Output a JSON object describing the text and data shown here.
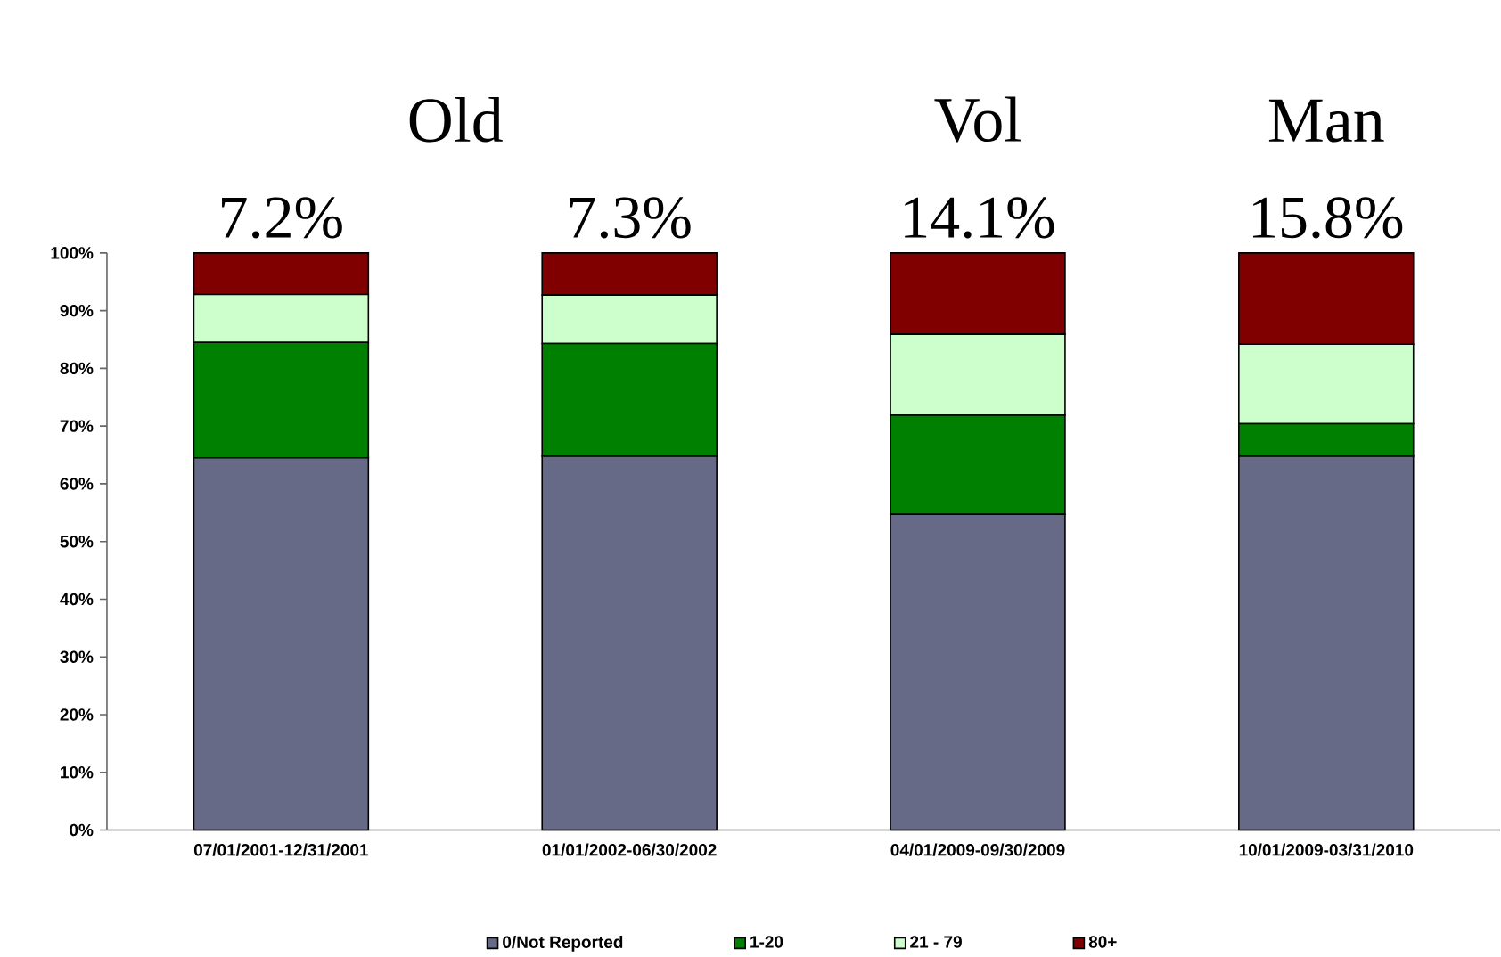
{
  "chart_data": {
    "type": "bar",
    "stacked": true,
    "categories": [
      "07/01/2001-12/31/2001",
      "01/01/2002-06/30/2002",
      "04/01/2009-09/30/2009",
      "10/01/2009-03/31/2010"
    ],
    "series": [
      {
        "name": "0/Not Reported",
        "color": "#666a86",
        "values": [
          64.5,
          64.8,
          54.7,
          64.8
        ]
      },
      {
        "name": "1-20",
        "color": "#008000",
        "values": [
          20.0,
          19.5,
          17.2,
          5.6
        ]
      },
      {
        "name": "21 - 79",
        "color": "#ccffcc",
        "values": [
          8.3,
          8.4,
          14.0,
          13.8
        ]
      },
      {
        "name": "80+",
        "color": "#800000",
        "values": [
          7.2,
          7.3,
          14.1,
          15.8
        ],
        "value_labels": [
          "7.2%",
          "7.3%",
          "14.1%",
          "15.8%"
        ]
      }
    ],
    "ylim": [
      0,
      100
    ],
    "yticks": [
      {
        "value": 0,
        "label": "0%"
      },
      {
        "value": 10,
        "label": "10%"
      },
      {
        "value": 20,
        "label": "20%"
      },
      {
        "value": 30,
        "label": "30%"
      },
      {
        "value": 40,
        "label": "40%"
      },
      {
        "value": 50,
        "label": "50%"
      },
      {
        "value": 60,
        "label": "60%"
      },
      {
        "value": 70,
        "label": "70%"
      },
      {
        "value": 80,
        "label": "80%"
      },
      {
        "value": 90,
        "label": "90%"
      },
      {
        "value": 100,
        "label": "100%"
      }
    ],
    "annotations": [
      "Old",
      "Vol",
      "Man"
    ],
    "grid": false,
    "legend": "bottom"
  }
}
